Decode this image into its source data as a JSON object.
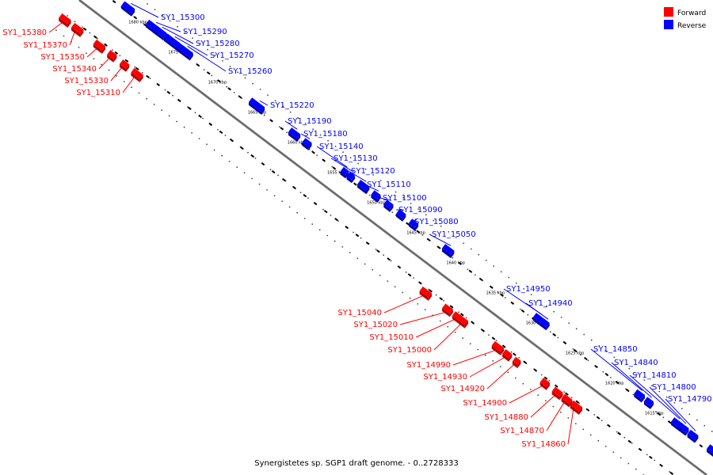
{
  "caption": "Synergistetes sp. SGP1 draft genome. - 0..2728333",
  "legend": [
    {
      "label": "Forward",
      "color": "#ff0000"
    },
    {
      "label": "Reverse",
      "color": "#0000ff"
    }
  ],
  "colors": {
    "forward": "#ff0000",
    "forward_dark": "#b30000",
    "reverse": "#0000ff",
    "reverse_dark": "#0000aa",
    "backbone": "#888888"
  },
  "ticks": [
    "1680 kbp",
    "1675 kbp",
    "1670 kbp",
    "1665 kbp",
    "1660 kbp",
    "1655 kbp",
    "1650 kbp",
    "1645 kbp",
    "1640 kbp",
    "1635 kbp",
    "1630 kbp",
    "1625 kbp",
    "1620 kbp",
    "1615 kbp"
  ],
  "forward_genes": [
    "SY1_15380",
    "SY1_15370",
    "SY1_15350",
    "SY1_15340",
    "SY1_15330",
    "SY1_15310",
    "SY1_15040",
    "SY1_15020",
    "SY1_15010",
    "SY1_15000",
    "SY1_14990",
    "SY1_14930",
    "SY1_14920",
    "SY1_14900",
    "SY1_14880",
    "SY1_14870",
    "SY1_14860"
  ],
  "reverse_genes": [
    "SY1_15300",
    "SY1_15290",
    "SY1_15280",
    "SY1_15270",
    "SY1_15260",
    "SY1_15220",
    "SY1_15190",
    "SY1_15180",
    "SY1_15140",
    "SY1_15130",
    "SY1_15120",
    "SY1_15110",
    "SY1_15100",
    "SY1_15090",
    "SY1_15080",
    "SY1_15050",
    "SY1_14950",
    "SY1_14940",
    "SY1_14850",
    "SY1_14840",
    "SY1_14810",
    "SY1_14800",
    "SY1_14790"
  ]
}
